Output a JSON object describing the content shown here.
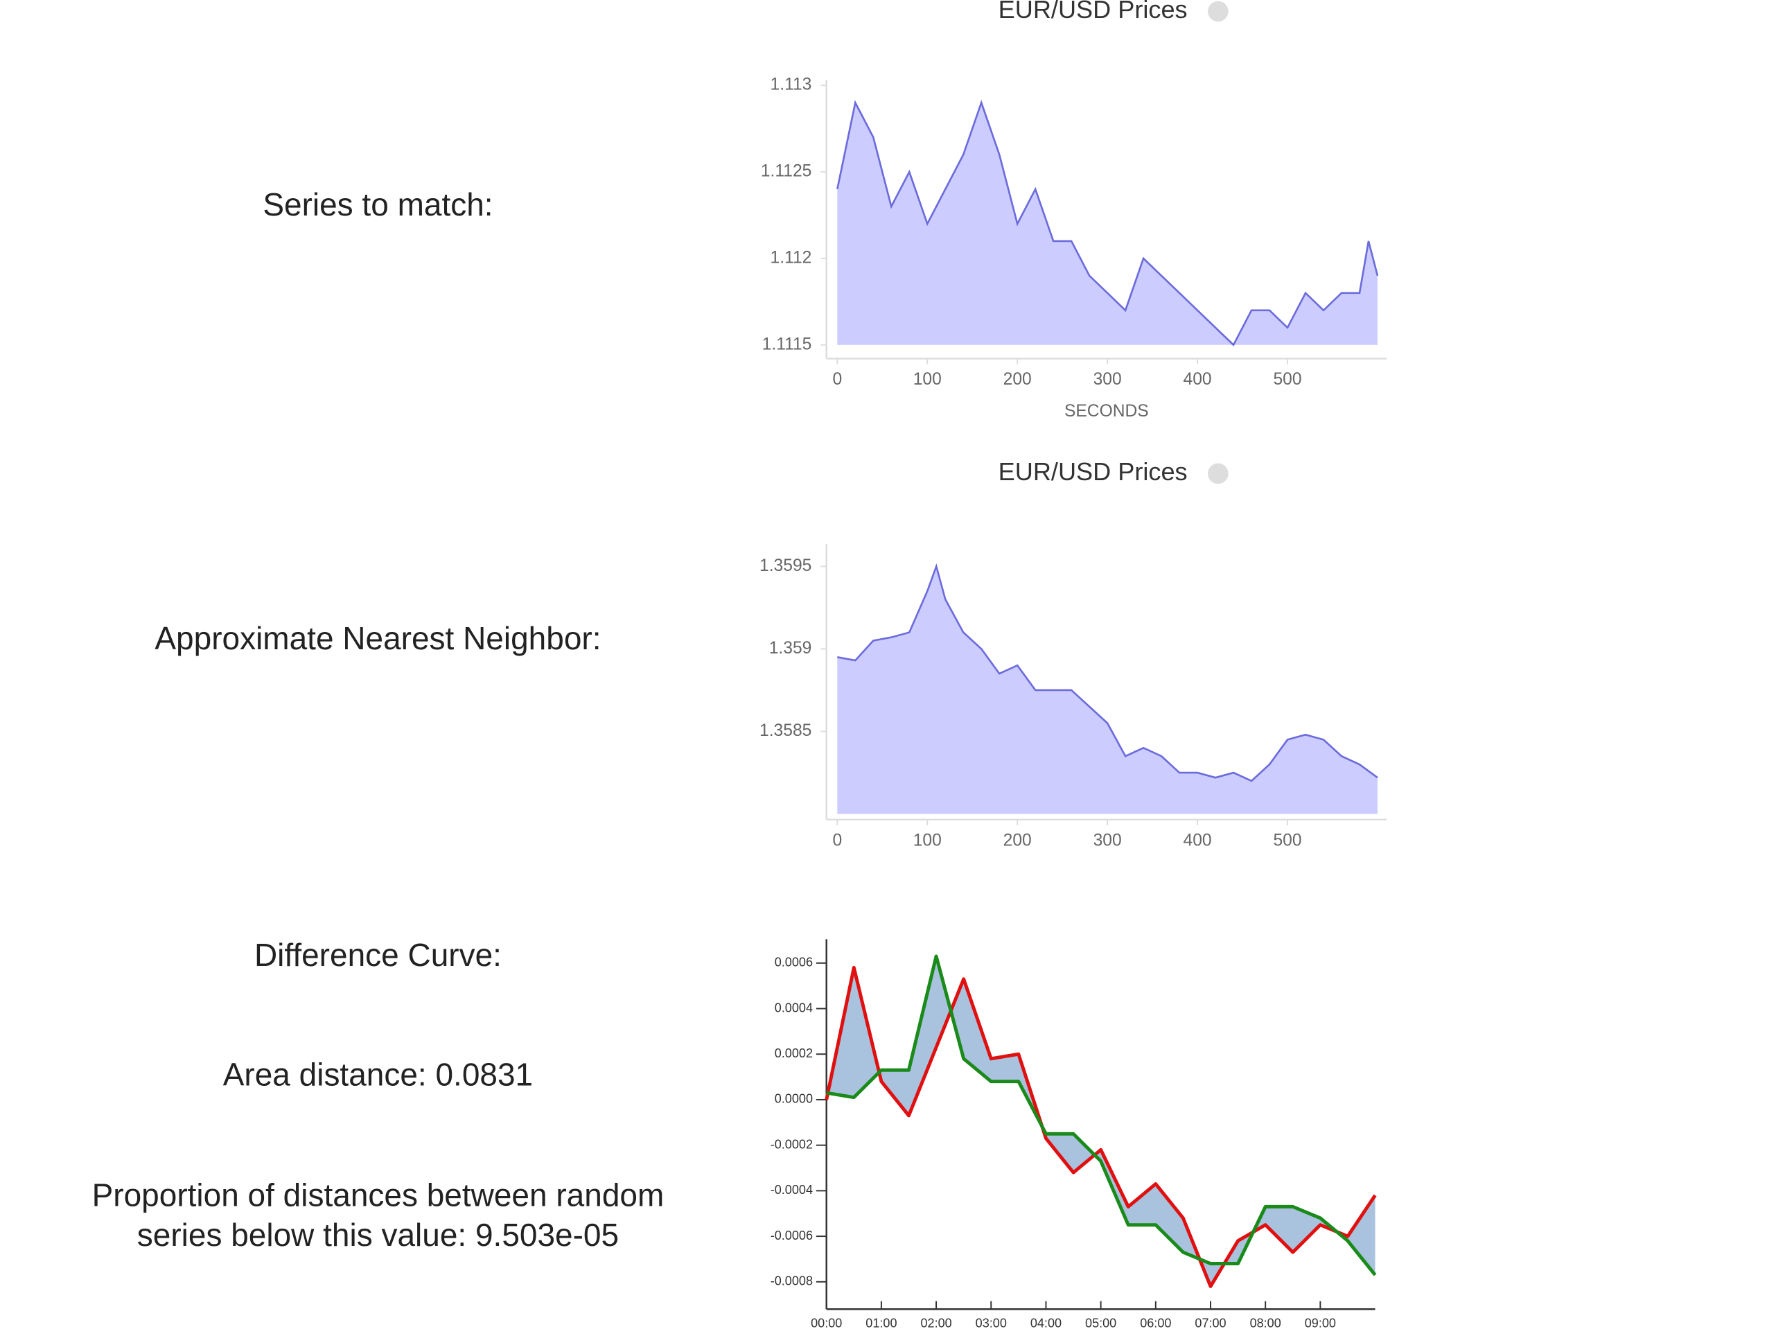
{
  "labels": {
    "series_to_match": "Series to match:",
    "nearest_neighbor": "Approximate Nearest Neighbor:",
    "difference_curve": "Difference Curve:",
    "area_distance": "Area distance: 0.0831",
    "proportion": [
      "Proportion of distances between random",
      "series below this value: 9.503e-05"
    ]
  },
  "chart_data": [
    {
      "type": "area",
      "title": "EUR/USD Prices",
      "x_label": "SECONDS",
      "color": "#6b6bdc",
      "fill": "#ccccff",
      "x": [
        0,
        20,
        40,
        60,
        80,
        100,
        120,
        140,
        160,
        180,
        200,
        220,
        240,
        260,
        280,
        300,
        320,
        340,
        360,
        380,
        400,
        420,
        440,
        460,
        480,
        500,
        520,
        540,
        560,
        580,
        590,
        600
      ],
      "values": [
        1.1124,
        1.1129,
        1.1127,
        1.1123,
        1.1125,
        1.1122,
        1.1124,
        1.1126,
        1.1129,
        1.1126,
        1.1122,
        1.1124,
        1.1121,
        1.1121,
        1.1119,
        1.1118,
        1.1117,
        1.112,
        1.1119,
        1.1118,
        1.1117,
        1.1116,
        1.1115,
        1.1117,
        1.1117,
        1.1116,
        1.1118,
        1.1117,
        1.1118,
        1.1118,
        1.1121,
        1.1119
      ],
      "xlim": [
        -12,
        610
      ],
      "xticks": [
        0,
        100,
        200,
        300,
        400,
        500
      ],
      "ylim": [
        1.1115,
        1.113
      ],
      "yticks": [
        1.1115,
        1.112,
        1.1125,
        1.113
      ]
    },
    {
      "type": "area",
      "title": "EUR/USD Prices",
      "color": "#6b6bdc",
      "fill": "#ccccff",
      "x": [
        0,
        20,
        40,
        60,
        80,
        100,
        110,
        120,
        140,
        160,
        180,
        200,
        220,
        240,
        260,
        280,
        300,
        320,
        340,
        360,
        380,
        400,
        420,
        440,
        460,
        480,
        500,
        520,
        540,
        560,
        580,
        600
      ],
      "values": [
        1.35895,
        1.35893,
        1.35905,
        1.35907,
        1.3591,
        1.35935,
        1.3595,
        1.3593,
        1.3591,
        1.359,
        1.35885,
        1.3589,
        1.35875,
        1.35875,
        1.35875,
        1.35865,
        1.35855,
        1.35835,
        1.3584,
        1.35835,
        1.35825,
        1.35825,
        1.35822,
        1.35825,
        1.3582,
        1.3583,
        1.35845,
        1.35848,
        1.35845,
        1.35835,
        1.3583,
        1.35822
      ],
      "xlim": [
        -12,
        610
      ],
      "xticks": [
        0,
        100,
        200,
        300,
        400,
        500
      ],
      "ylim": [
        1.358,
        1.3596
      ],
      "yticks": [
        1.3585,
        1.359,
        1.3595
      ]
    },
    {
      "type": "line",
      "fill": "#a9c3de",
      "x": [
        0,
        0.5,
        1,
        1.5,
        2,
        2.5,
        3,
        3.5,
        4,
        4.5,
        5,
        5.5,
        6,
        6.5,
        7,
        7.5,
        8,
        8.5,
        9,
        9.5,
        10
      ],
      "series": [
        {
          "color": "#e01010",
          "values": [
            0,
            0.00058,
            8e-05,
            -7e-05,
            0.00023,
            0.00053,
            0.00018,
            0.0002,
            -0.00017,
            -0.00032,
            -0.00022,
            -0.00047,
            -0.00037,
            -0.00052,
            -0.00082,
            -0.00062,
            -0.00055,
            -0.00067,
            -0.00055,
            -0.0006,
            -0.00042
          ]
        },
        {
          "color": "#1a8a1a",
          "values": [
            3e-05,
            1e-05,
            0.00013,
            0.00013,
            0.00063,
            0.00018,
            8e-05,
            8e-05,
            -0.00015,
            -0.00015,
            -0.00027,
            -0.00055,
            -0.00055,
            -0.00067,
            -0.00072,
            -0.00072,
            -0.00047,
            -0.00047,
            -0.00052,
            -0.00062,
            -0.00077
          ]
        }
      ],
      "xlim": [
        0,
        10
      ],
      "xticks": [
        {
          "value": 0,
          "label": "00:00"
        },
        {
          "value": 1,
          "label": "01:00"
        },
        {
          "value": 2,
          "label": "02:00"
        },
        {
          "value": 3,
          "label": "03:00"
        },
        {
          "value": 4,
          "label": "04:00"
        },
        {
          "value": 5,
          "label": "05:00"
        },
        {
          "value": 6,
          "label": "06:00"
        },
        {
          "value": 7,
          "label": "07:00"
        },
        {
          "value": 8,
          "label": "08:00"
        },
        {
          "value": 9,
          "label": "09:00"
        }
      ],
      "ylim": [
        -0.00092,
        0.00068
      ],
      "yticks": [
        -0.0008,
        -0.0006,
        -0.0004,
        -0.0002,
        {
          "value": 0,
          "label": "0.0000"
        },
        0.0002,
        0.0004,
        0.0006
      ]
    }
  ]
}
